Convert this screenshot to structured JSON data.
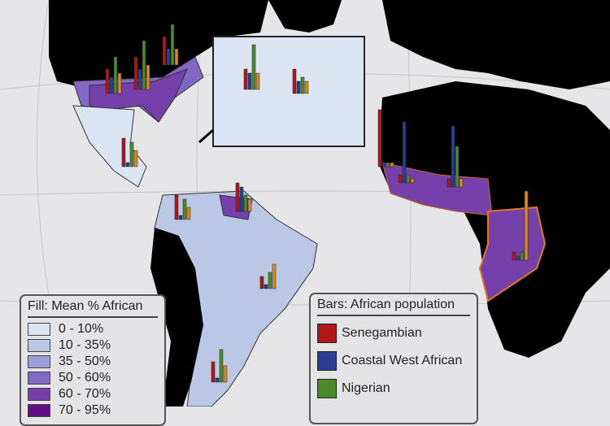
{
  "fill_legend": {
    "title": "Fill: Mean % African",
    "items": [
      {
        "label": "0 - 10%",
        "color": "#dbe4f2"
      },
      {
        "label": "10 - 35%",
        "color": "#bac8e6"
      },
      {
        "label": "35 - 50%",
        "color": "#9c9fdc"
      },
      {
        "label": "50 - 60%",
        "color": "#8068c4"
      },
      {
        "label": "60 - 70%",
        "color": "#7540aa"
      },
      {
        "label": "70 - 95%",
        "color": "#5c0e82"
      }
    ]
  },
  "bar_legend": {
    "title": "Bars: African population",
    "items": [
      {
        "label": "Senegambian",
        "color": "#b01818"
      },
      {
        "label": "Coastal West African",
        "color": "#2a3e96"
      },
      {
        "label": "Nigerian",
        "color": "#4a8a2a"
      }
    ]
  },
  "bar_colors": [
    "#b01818",
    "#2a3e96",
    "#4a8a2a",
    "#d88a1a"
  ],
  "colors": {
    "land_other": "#000000",
    "background": "#e6e6e8"
  }
}
